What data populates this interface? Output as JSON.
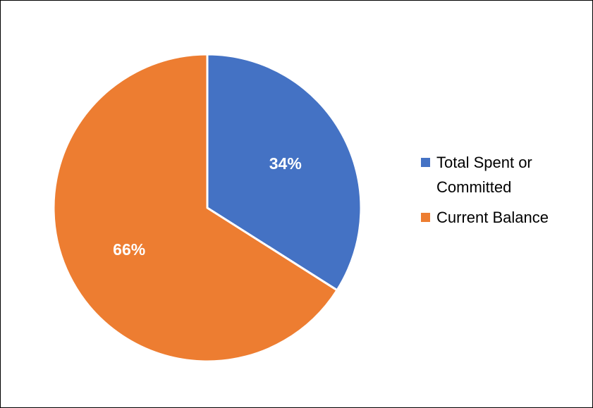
{
  "chart_data": {
    "type": "pie",
    "title": "",
    "slices": [
      {
        "label": "Total Spent or Committed",
        "value": 34,
        "display": "34%",
        "color": "#4472C4"
      },
      {
        "label": "Current Balance",
        "value": 66,
        "display": "66%",
        "color": "#ED7D31"
      }
    ],
    "legend": {
      "position": "right",
      "items": [
        {
          "label": "Total Spent or Committed",
          "color": "#4472C4"
        },
        {
          "label": "Current Balance",
          "color": "#ED7D31"
        }
      ]
    }
  }
}
